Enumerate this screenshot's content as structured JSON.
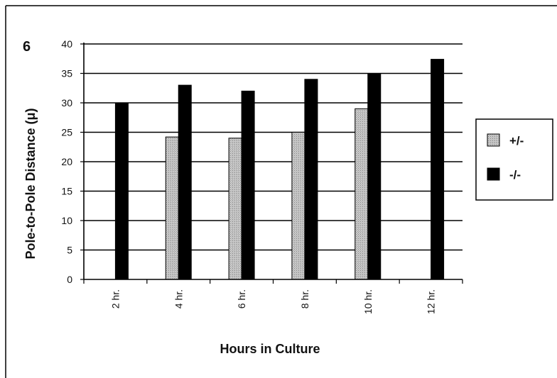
{
  "panel_label": "6",
  "chart_data": {
    "type": "bar",
    "categories": [
      "2 hr.",
      "4 hr.",
      "6 hr.",
      "8 hr.",
      "10 hr.",
      "12 hr."
    ],
    "series": [
      {
        "name": "+/-",
        "values": [
          null,
          24.2,
          24,
          25,
          29,
          null
        ],
        "color": "#b8b8b8"
      },
      {
        "name": "-/-",
        "values": [
          30,
          33,
          32,
          34,
          35,
          37.4
        ],
        "color": "#000000"
      }
    ],
    "xlabel": "Hours in Culture",
    "ylabel": "Pole-to-Pole Distance (μ)",
    "ylim": [
      0,
      40
    ],
    "yticks": [
      0,
      5,
      10,
      15,
      20,
      25,
      30,
      35,
      40
    ],
    "grid": true,
    "legend_position": "right"
  }
}
